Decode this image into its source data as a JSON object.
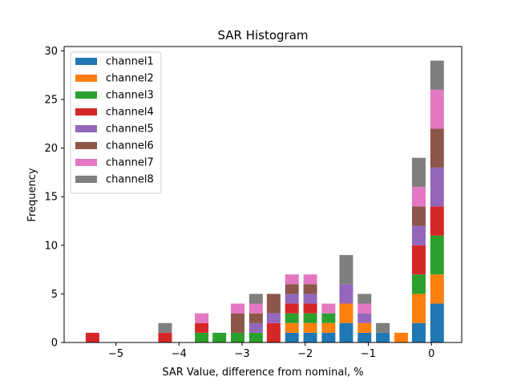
{
  "chart_data": {
    "type": "bar",
    "stacked": true,
    "title": "SAR Histogram",
    "xlabel": "SAR Value, difference from nominal, %",
    "ylabel": "Frequency",
    "xlim": [
      -5.82,
      0.48
    ],
    "ylim": [
      0,
      30.45
    ],
    "xticks": [
      -5,
      -4,
      -3,
      -2,
      -1,
      0
    ],
    "xtick_labels": [
      "−5",
      "−4",
      "−3",
      "−2",
      "−1",
      "0"
    ],
    "yticks": [
      0,
      5,
      10,
      15,
      20,
      25,
      30
    ],
    "ytick_labels": [
      "0",
      "5",
      "10",
      "15",
      "20",
      "25",
      "30"
    ],
    "grid": false,
    "legend_position": "top-left",
    "bin_width": 0.2875,
    "bin_centers": [
      -5.37,
      -5.08,
      -4.79,
      -4.51,
      -4.22,
      -3.93,
      -3.64,
      -3.36,
      -3.07,
      -2.78,
      -2.5,
      -2.21,
      -1.92,
      -1.63,
      -1.35,
      -1.06,
      -0.77,
      -0.48,
      -0.2,
      0.09
    ],
    "series": [
      {
        "name": "channel1",
        "color": "#1f77b4",
        "values": [
          0,
          0,
          0,
          0,
          0,
          0,
          0,
          0,
          0,
          0,
          0,
          1,
          1,
          1,
          2,
          1,
          1,
          0,
          2,
          4
        ]
      },
      {
        "name": "channel2",
        "color": "#ff7f0e",
        "values": [
          0,
          0,
          0,
          0,
          0,
          0,
          0,
          0,
          0,
          0,
          0,
          1,
          1,
          1,
          2,
          1,
          0,
          1,
          3,
          3
        ]
      },
      {
        "name": "channel3",
        "color": "#2ca02c",
        "values": [
          0,
          0,
          0,
          0,
          0,
          0,
          1,
          1,
          1,
          1,
          0,
          1,
          1,
          1,
          0,
          0,
          0,
          0,
          2,
          4
        ]
      },
      {
        "name": "channel4",
        "color": "#d62728",
        "values": [
          1,
          0,
          0,
          0,
          1,
          0,
          1,
          0,
          0,
          0,
          2,
          1,
          1,
          0,
          0,
          0,
          0,
          0,
          3,
          3
        ]
      },
      {
        "name": "channel5",
        "color": "#9467bd",
        "values": [
          0,
          0,
          0,
          0,
          0,
          0,
          0,
          0,
          0,
          1,
          1,
          1,
          1,
          0,
          2,
          1,
          0,
          0,
          2,
          4
        ]
      },
      {
        "name": "channel6",
        "color": "#8c564b",
        "values": [
          0,
          0,
          0,
          0,
          0,
          0,
          0,
          0,
          2,
          1,
          2,
          1,
          1,
          0,
          0,
          0,
          0,
          0,
          2,
          4
        ]
      },
      {
        "name": "channel7",
        "color": "#e377c2",
        "values": [
          0,
          0,
          0,
          0,
          0,
          0,
          1,
          0,
          1,
          1,
          0,
          1,
          1,
          1,
          0,
          1,
          0,
          0,
          2,
          4
        ]
      },
      {
        "name": "channel8",
        "color": "#7f7f7f",
        "values": [
          0,
          0,
          0,
          0,
          1,
          0,
          0,
          0,
          0,
          1,
          0,
          0,
          0,
          0,
          3,
          1,
          1,
          0,
          3,
          3
        ]
      }
    ]
  }
}
